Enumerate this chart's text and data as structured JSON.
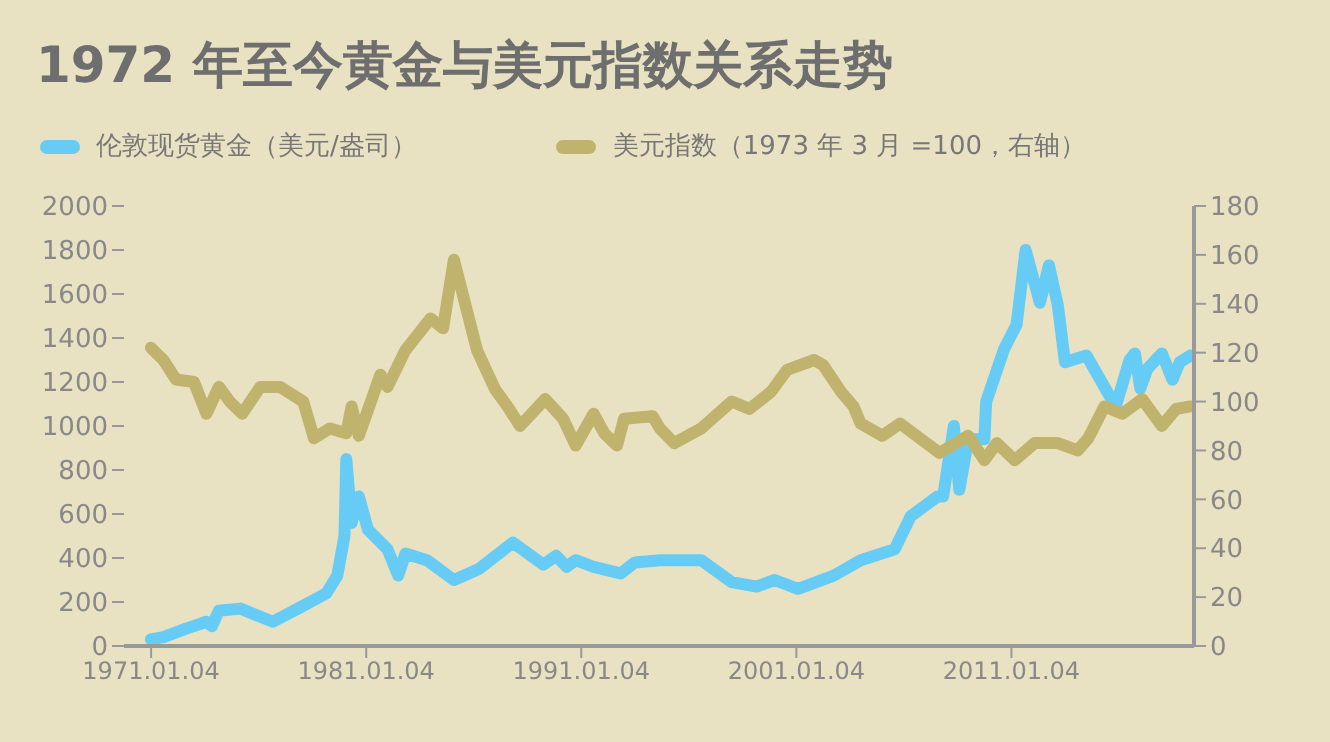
{
  "chart_data": {
    "type": "line",
    "title": "1972 年至今黄金与美元指数关系走势",
    "legend": "top",
    "line_style": "solid",
    "xlim": [
      "1969-10",
      "2019-07"
    ],
    "xticks": [
      {
        "value": "1971-01-04",
        "label": "1971.01.04"
      },
      {
        "value": "1981-01-04",
        "label": "1981.01.04"
      },
      {
        "value": "1991-01-04",
        "label": "1991.01.04"
      },
      {
        "value": "2001-01-04",
        "label": "2001.01.04"
      },
      {
        "value": "2011-01-04",
        "label": "2011.01.04"
      }
    ],
    "ylim": [
      0,
      2000
    ],
    "yticks": [
      0,
      200,
      400,
      600,
      800,
      1000,
      1200,
      1400,
      1600,
      1800,
      2000
    ],
    "y2lim": [
      0,
      180
    ],
    "y2ticks": [
      0,
      20,
      40,
      60,
      80,
      100,
      120,
      140,
      160,
      180
    ],
    "series": [
      {
        "name": "伦敦现货黄金（美元/盎司）",
        "color": "#66ccf5",
        "x": [
          "1971-01",
          "1971-08",
          "1972-09",
          "1973-08",
          "1973-11",
          "1974-03",
          "1975-03",
          "1976-09",
          "1977-11",
          "1979-03",
          "1979-09",
          "1980-01",
          "1980-02",
          "1980-05",
          "1980-09",
          "1981-02",
          "1982-01",
          "1982-07",
          "1982-11",
          "1983-11",
          "1985-02",
          "1986-04",
          "1987-11",
          "1989-04",
          "1989-11",
          "1990-05",
          "1990-10",
          "1991-08",
          "1992-11",
          "1993-07",
          "1994-09",
          "1996-08",
          "1998-01",
          "1999-03",
          "2000-01",
          "2001-02",
          "2002-10",
          "2004-01",
          "2005-08",
          "2006-05",
          "2007-08",
          "2007-11",
          "2008-05",
          "2008-08",
          "2009-01",
          "2009-10",
          "2009-11",
          "2010-09",
          "2011-04",
          "2011-09",
          "2012-05",
          "2012-10",
          "2013-03",
          "2013-07",
          "2014-07",
          "2015-09",
          "2015-11",
          "2016-07",
          "2016-10",
          "2017-01",
          "2017-05",
          "2018-01",
          "2018-07",
          "2018-11",
          "2019-05"
        ],
        "values": [
          30,
          40,
          80,
          110,
          90,
          160,
          170,
          110,
          170,
          240,
          320,
          500,
          850,
          560,
          680,
          530,
          440,
          320,
          420,
          390,
          300,
          350,
          470,
          370,
          410,
          360,
          390,
          360,
          330,
          380,
          390,
          390,
          290,
          270,
          300,
          260,
          320,
          390,
          440,
          590,
          680,
          680,
          1000,
          710,
          940,
          940,
          1110,
          1350,
          1460,
          1800,
          1560,
          1730,
          1550,
          1290,
          1320,
          1120,
          1080,
          1300,
          1330,
          1170,
          1260,
          1330,
          1210,
          1290,
          1320
        ]
      },
      {
        "name": "美元指数（1973 年 3 月 =100，右轴）",
        "color": "#bfb36d",
        "axis": "y2",
        "x": [
          "1971-01",
          "1971-08",
          "1972-03",
          "1973-01",
          "1973-08",
          "1974-03",
          "1974-09",
          "1975-04",
          "1976-02",
          "1977-01",
          "1978-02",
          "1978-08",
          "1979-05",
          "1980-02",
          "1980-05",
          "1980-09",
          "1981-09",
          "1982-01",
          "1982-11",
          "1984-01",
          "1984-08",
          "1985-02",
          "1986-03",
          "1987-01",
          "1987-08",
          "1988-03",
          "1989-05",
          "1990-03",
          "1990-10",
          "1991-08",
          "1992-02",
          "1992-09",
          "1993-01",
          "1994-05",
          "1994-09",
          "1995-05",
          "1996-08",
          "1998-01",
          "1998-11",
          "1999-11",
          "2000-08",
          "2001-11",
          "2002-04",
          "2003-02",
          "2003-09",
          "2004-01",
          "2005-01",
          "2005-11",
          "2006-10",
          "2007-09",
          "2009-01",
          "2009-10",
          "2010-05",
          "2011-03",
          "2012-02",
          "2013-03",
          "2014-02",
          "2014-08",
          "2015-05",
          "2016-03",
          "2017-02",
          "2018-01",
          "2018-09",
          "2019-05"
        ],
        "values": [
          122,
          117,
          109,
          108,
          95,
          106,
          100,
          95,
          106,
          106,
          100,
          85,
          89,
          87,
          98,
          86,
          111,
          106,
          121,
          134,
          130,
          158,
          121,
          105,
          98,
          90,
          101,
          93,
          82,
          95,
          87,
          82,
          93,
          94,
          89,
          83,
          89,
          100,
          97,
          104,
          113,
          117,
          115,
          104,
          98,
          91,
          86,
          91,
          85,
          79,
          86,
          76,
          83,
          76,
          83,
          83,
          80,
          85,
          98,
          95,
          101,
          90,
          97,
          98
        ]
      }
    ]
  }
}
